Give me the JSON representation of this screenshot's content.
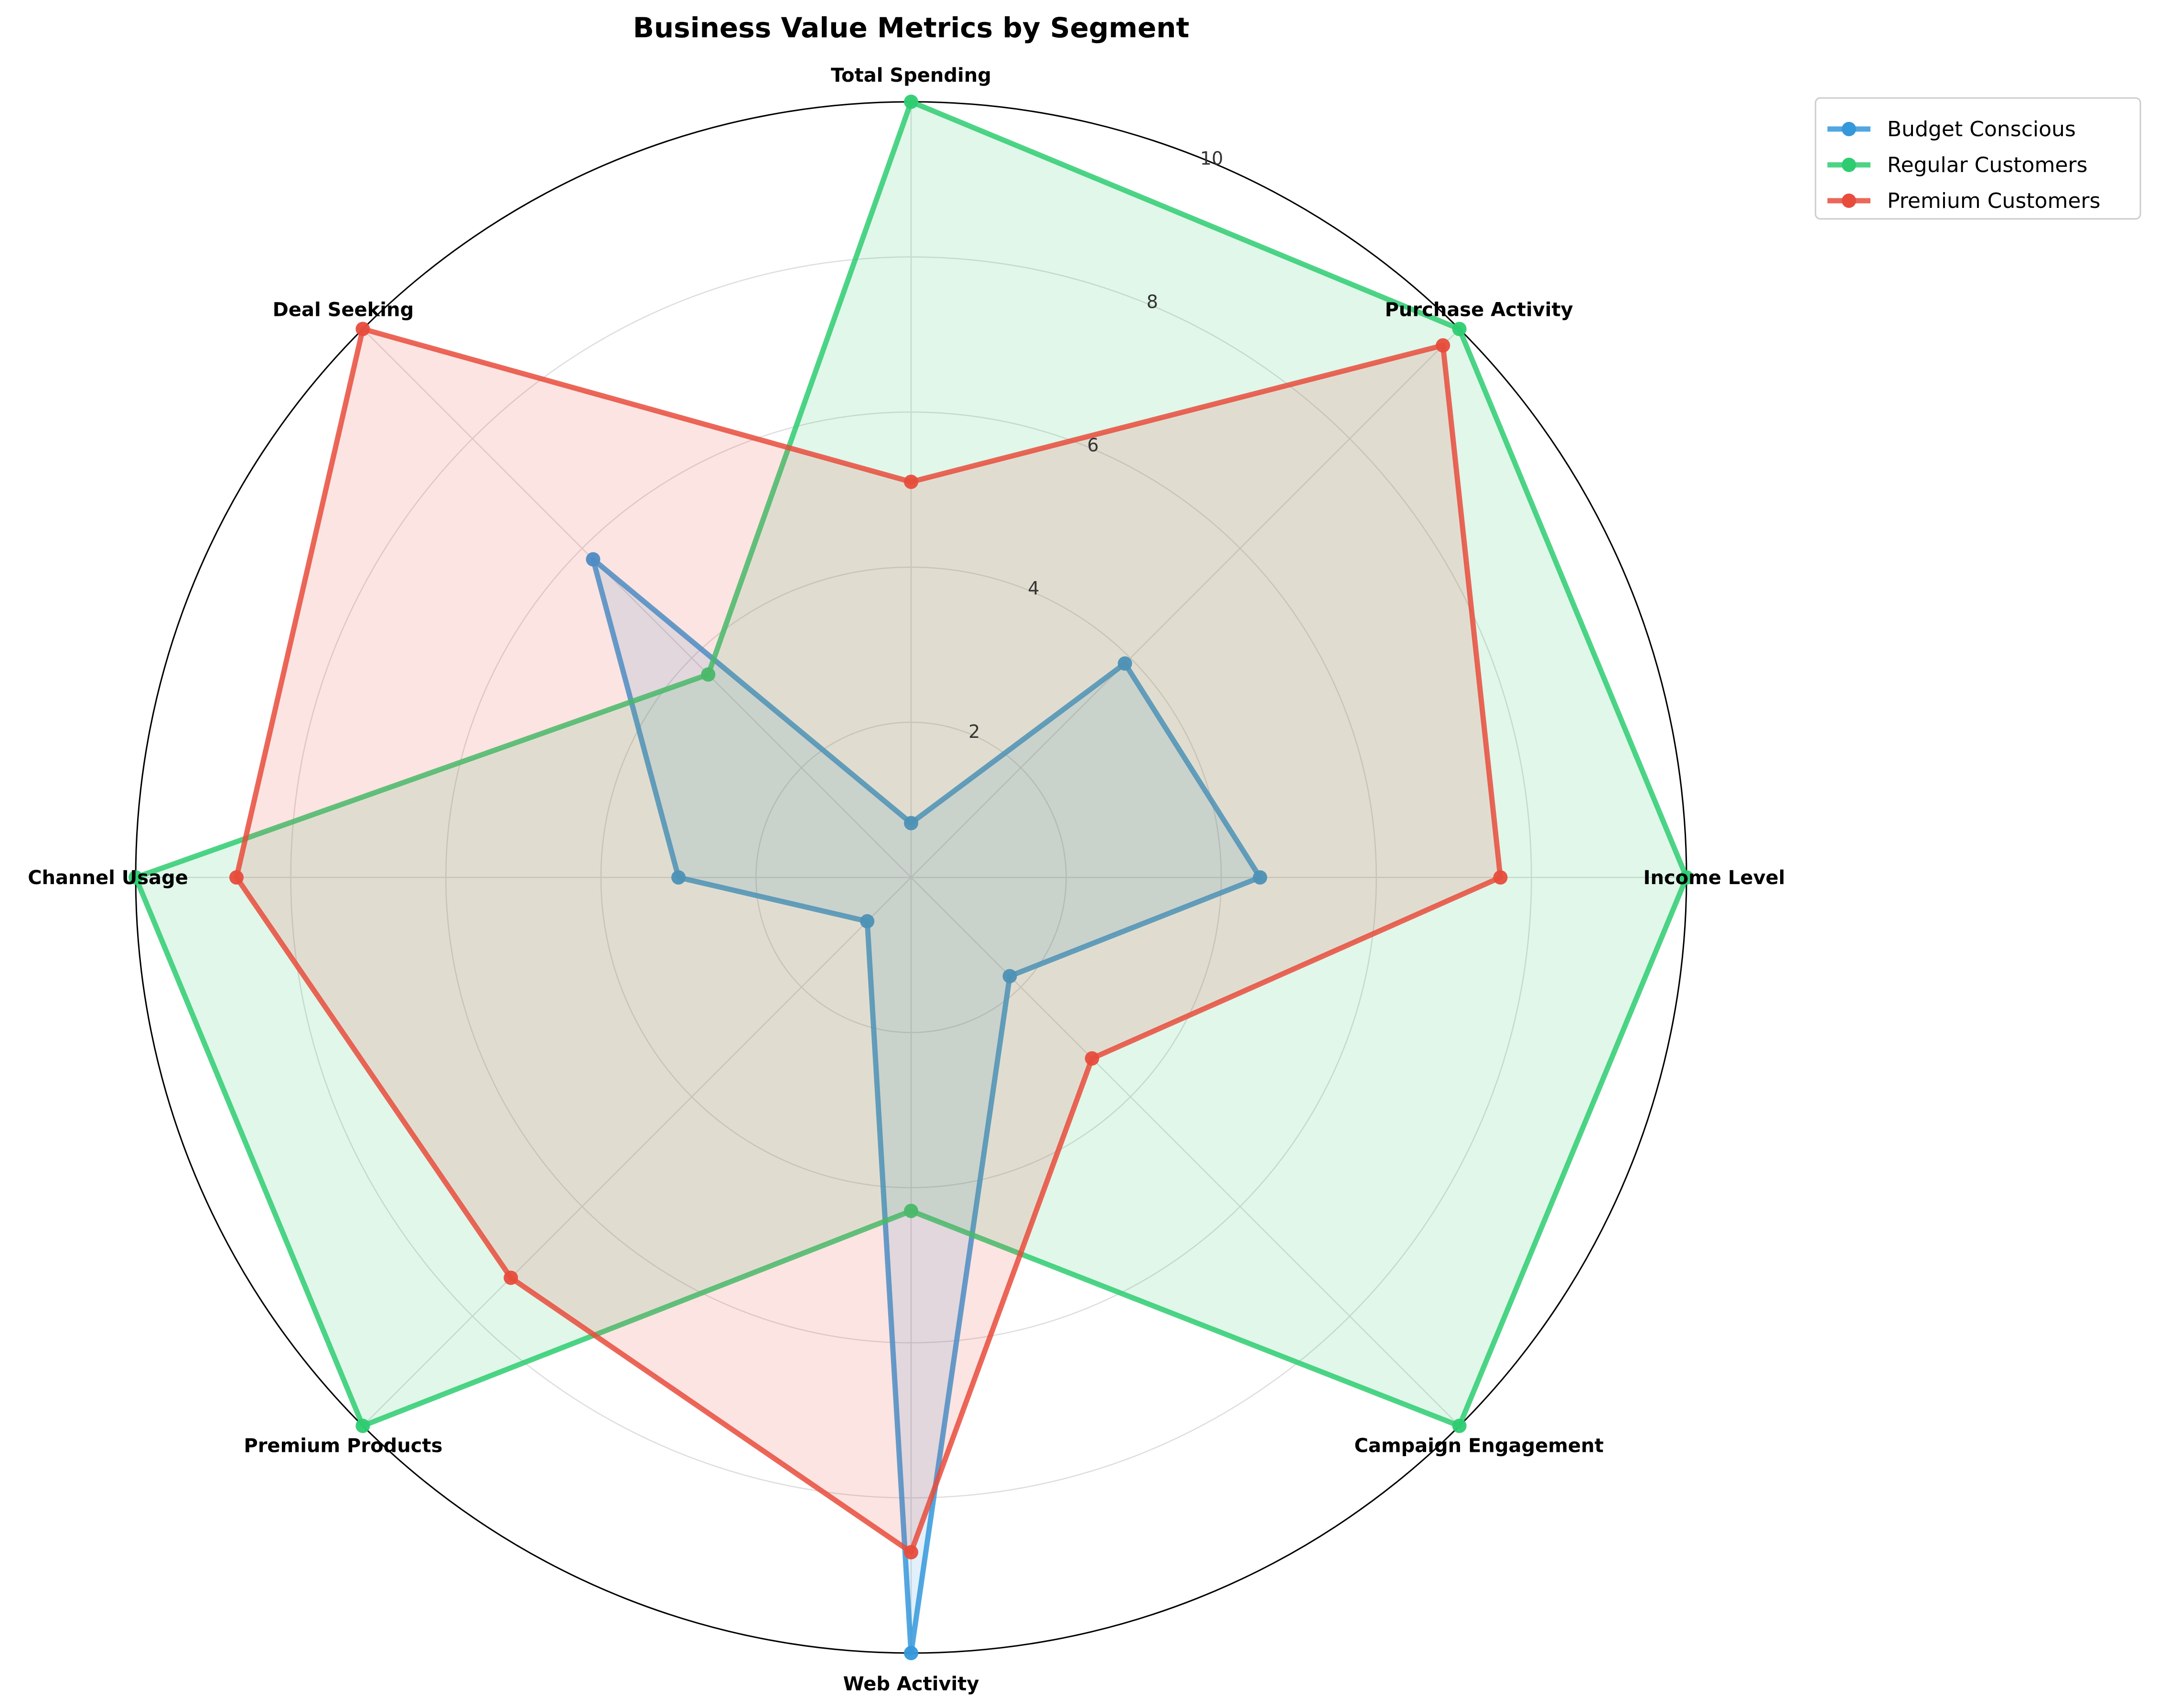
{
  "chart_data": {
    "type": "radar",
    "title": "Business Value Metrics by Segment",
    "axes": [
      "Total Spending",
      "Purchase Activity",
      "Income Level",
      "Campaign Engagement",
      "Web Activity",
      "Premium Products",
      "Channel Usage",
      "Deal Seeking"
    ],
    "rlim": [
      0,
      10
    ],
    "rticks": [
      2,
      4,
      6,
      8,
      10
    ],
    "grid": true,
    "legend_position": "top-right",
    "series": [
      {
        "name": "Budget Conscious",
        "color": "#3498db",
        "values": [
          0.7,
          3.9,
          4.5,
          1.8,
          10.0,
          0.8,
          3.0,
          5.8
        ]
      },
      {
        "name": "Regular Customers",
        "color": "#2ecc71",
        "values": [
          10.0,
          10.0,
          10.0,
          10.0,
          4.3,
          10.0,
          10.0,
          3.7
        ]
      },
      {
        "name": "Premium Customers",
        "color": "#e74c3c",
        "values": [
          5.1,
          9.7,
          7.6,
          3.3,
          8.7,
          7.3,
          8.7,
          10.0
        ]
      }
    ]
  }
}
